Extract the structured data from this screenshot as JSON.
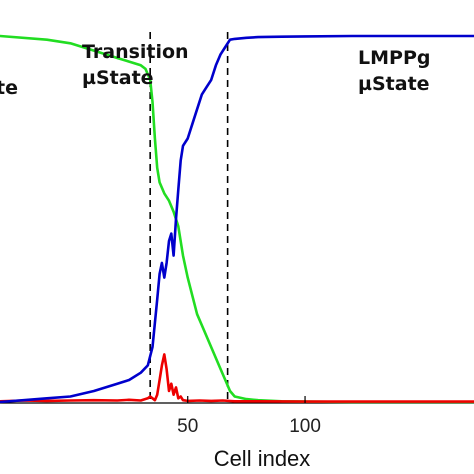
{
  "chart_data": {
    "type": "line",
    "xlabel": "Cell index",
    "xlim": [
      -30,
      172
    ],
    "ylim": [
      0,
      1
    ],
    "x_ticks": [
      50,
      100
    ],
    "grid": false,
    "legend": "none",
    "annotations": [
      {
        "lines": [
          "Transition",
          "µState"
        ],
        "x": 50
      },
      {
        "lines": [
          "LMPPg",
          "µState"
        ],
        "x": 112
      },
      {
        "lines": [
          "te"
        ],
        "x": -30
      }
    ],
    "boundaries": [
      34,
      67
    ],
    "series": [
      {
        "color": "#0000cc",
        "x": [
          -30,
          -20,
          -10,
          0,
          10,
          20,
          25,
          30,
          33,
          35,
          37,
          38,
          39,
          40,
          41,
          42,
          43,
          44,
          45,
          46,
          47,
          48,
          50,
          52,
          54,
          56,
          58,
          60,
          62,
          64,
          66,
          68,
          70,
          75,
          80,
          90,
          100,
          120,
          140,
          172
        ],
        "y": [
          0.0,
          0.005,
          0.01,
          0.015,
          0.03,
          0.05,
          0.06,
          0.08,
          0.1,
          0.15,
          0.28,
          0.35,
          0.38,
          0.34,
          0.38,
          0.44,
          0.46,
          0.4,
          0.5,
          0.58,
          0.66,
          0.7,
          0.72,
          0.76,
          0.8,
          0.84,
          0.86,
          0.88,
          0.92,
          0.95,
          0.97,
          0.99,
          0.992,
          0.995,
          0.997,
          0.998,
          0.999,
          1.0,
          1.0,
          1.0
        ]
      },
      {
        "color": "#22dd22",
        "x": [
          -30,
          -10,
          0,
          10,
          20,
          25,
          30,
          32,
          34,
          35,
          36,
          37,
          38,
          40,
          42,
          44,
          46,
          48,
          50,
          52,
          54,
          56,
          58,
          60,
          62,
          64,
          66,
          68,
          70,
          75,
          80,
          90,
          100,
          120,
          140,
          172
        ],
        "y": [
          1.0,
          0.99,
          0.98,
          0.96,
          0.94,
          0.93,
          0.92,
          0.91,
          0.88,
          0.82,
          0.72,
          0.64,
          0.6,
          0.57,
          0.55,
          0.52,
          0.48,
          0.4,
          0.34,
          0.29,
          0.24,
          0.21,
          0.18,
          0.15,
          0.12,
          0.09,
          0.06,
          0.03,
          0.015,
          0.008,
          0.005,
          0.002,
          0.001,
          0.0,
          0.0,
          0.0
        ]
      },
      {
        "color": "#ee0000",
        "x": [
          -30,
          -20,
          -10,
          0,
          10,
          20,
          25,
          30,
          33,
          34,
          35,
          36,
          37,
          38,
          39,
          40,
          41,
          42,
          43,
          44,
          45,
          46,
          47,
          48,
          50,
          55,
          60,
          65,
          70,
          80,
          100,
          140,
          172
        ],
        "y": [
          0.002,
          0.004,
          0.003,
          0.004,
          0.005,
          0.004,
          0.006,
          0.004,
          0.01,
          0.015,
          0.01,
          0.005,
          0.02,
          0.06,
          0.1,
          0.13,
          0.09,
          0.03,
          0.05,
          0.02,
          0.04,
          0.01,
          0.015,
          0.005,
          0.003,
          0.004,
          0.003,
          0.004,
          0.002,
          0.002,
          0.001,
          0.001,
          0.001
        ]
      }
    ]
  }
}
